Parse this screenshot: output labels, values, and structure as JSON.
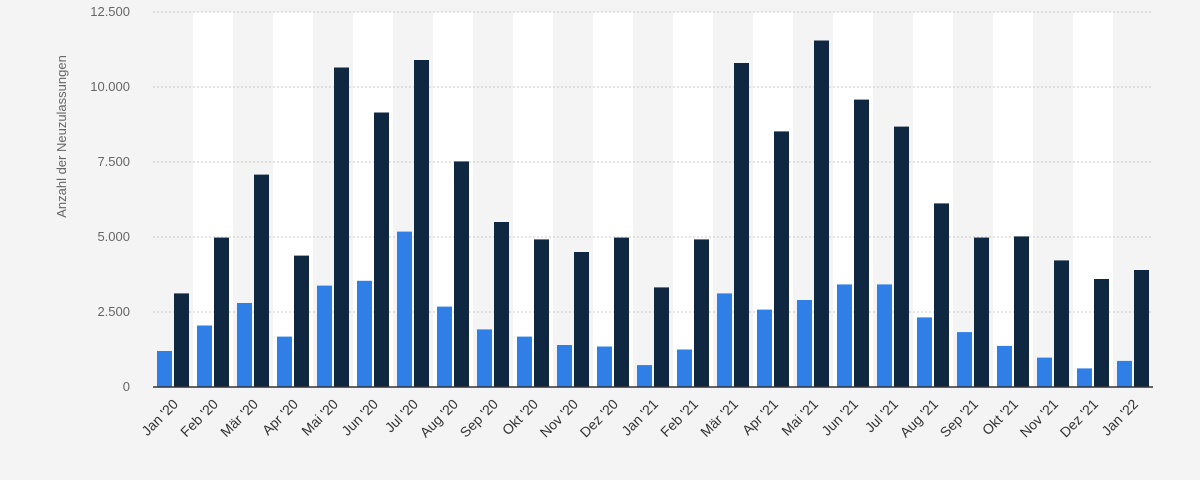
{
  "chart_data": {
    "type": "bar",
    "title": "",
    "xlabel": "",
    "ylabel": "Anzahl der Neuzulassungen",
    "ylim": [
      0,
      12500
    ],
    "yticks": [
      "0",
      "2.500",
      "5.000",
      "7.500",
      "10.000",
      "12.500"
    ],
    "ytick_values": [
      0,
      2500,
      5000,
      7500,
      10000,
      12500
    ],
    "grid": true,
    "colors": [
      "#2f7fe6",
      "#0f2741"
    ],
    "categories": [
      "Jan '20",
      "Feb '20",
      "Mär '20",
      "Apr '20",
      "Mai '20",
      "Jun '20",
      "Jul '20",
      "Aug '20",
      "Sep '20",
      "Okt '20",
      "Nov '20",
      "Dez '20",
      "Jan '21",
      "Feb '21",
      "Mär '21",
      "Apr '21",
      "Mai '21",
      "Jun '21",
      "Jul '21",
      "Aug '21",
      "Sep '21",
      "Okt '21",
      "Nov '21",
      "Dez '21",
      "Jan '22"
    ],
    "series": [
      {
        "values": [
          1200,
          2050,
          2800,
          1680,
          3380,
          3540,
          5180,
          2680,
          1920,
          1680,
          1400,
          1350,
          730,
          1250,
          3120,
          2580,
          2900,
          3420,
          3420,
          2320,
          1830,
          1370,
          980,
          620,
          870
        ]
      },
      {
        "values": [
          3120,
          4980,
          7080,
          4380,
          10650,
          9150,
          10900,
          7520,
          5500,
          4920,
          4500,
          4980,
          3320,
          4920,
          10800,
          8520,
          11550,
          9580,
          8680,
          6120,
          4980,
          5020,
          4220,
          3600,
          3900
        ]
      }
    ]
  }
}
